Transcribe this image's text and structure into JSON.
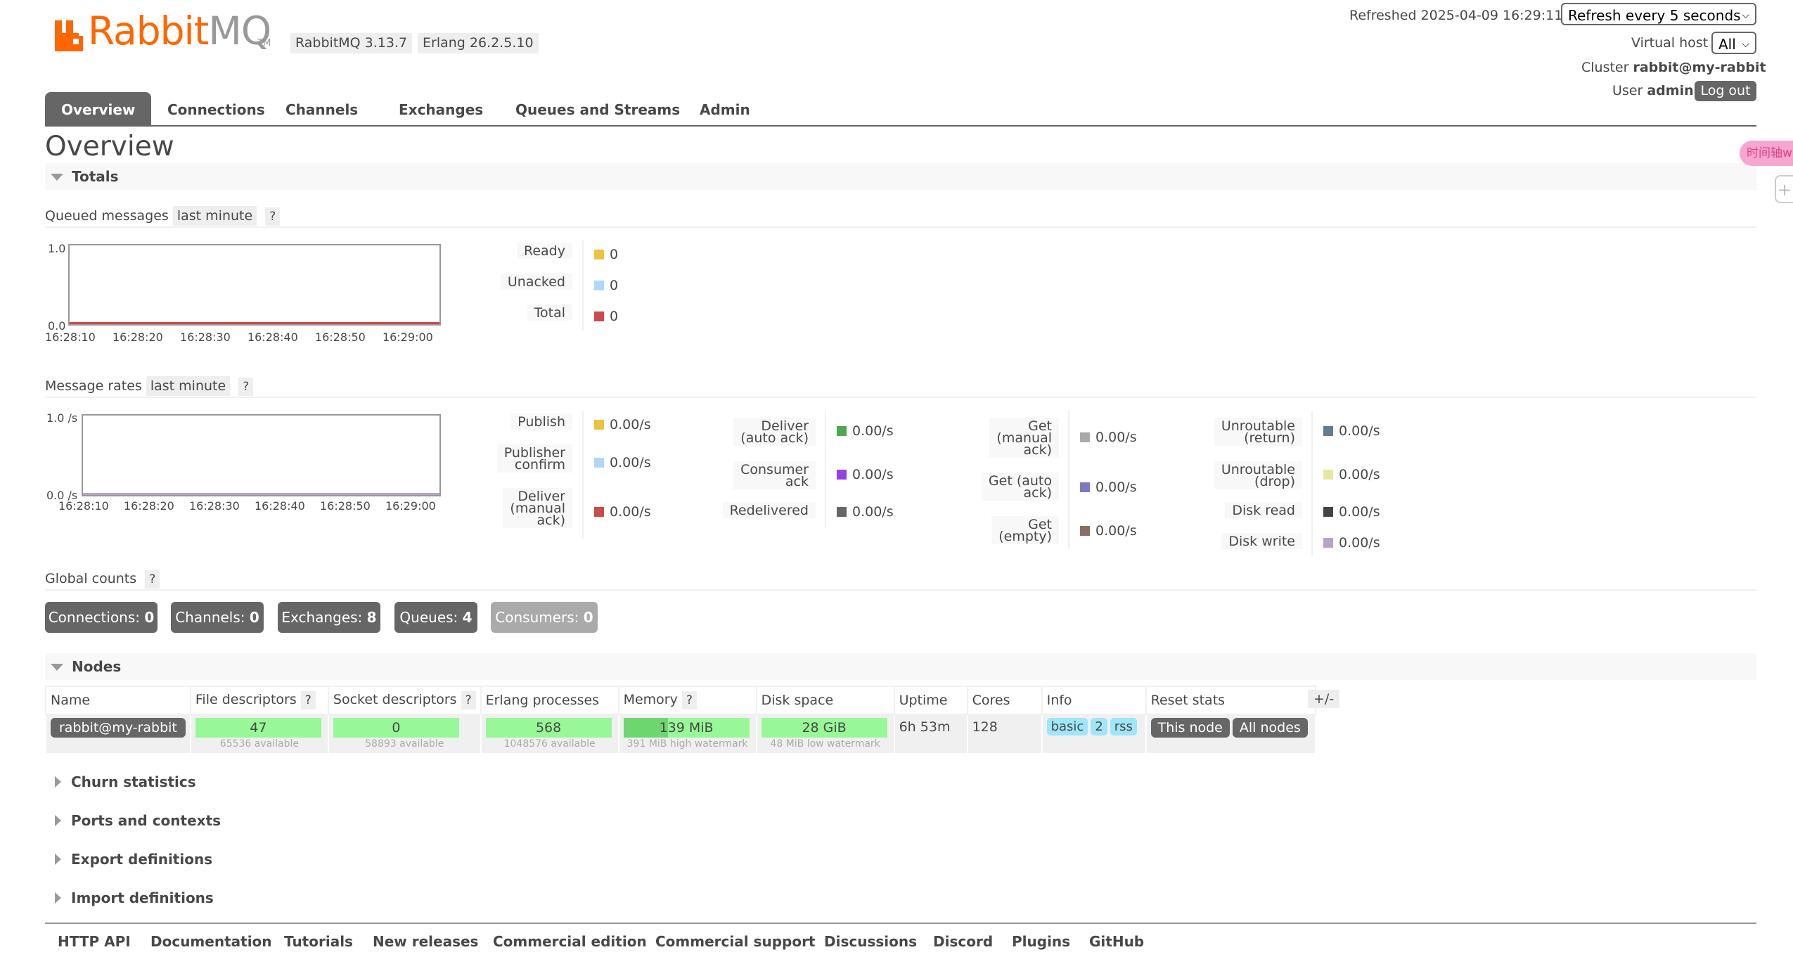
{
  "header": {
    "logo": {
      "rabbit": "Rabbit",
      "mq": "MQ",
      "tm": "TM"
    },
    "rabbitmq_version": "RabbitMQ 3.13.7",
    "erlang_version": "Erlang 26.2.5.10",
    "refreshed_label": "Refreshed 2025-04-09 16:29:11",
    "refresh_select": "Refresh every 5 seconds",
    "virtual_host_label": "Virtual host",
    "virtual_host_value": "All",
    "cluster_label": "Cluster",
    "cluster_value": "rabbit@my-rabbit",
    "user_label": "User",
    "user_value": "admin",
    "logout": "Log out"
  },
  "tabs": [
    "Overview",
    "Connections",
    "Channels",
    "Exchanges",
    "Queues and Streams",
    "Admin"
  ],
  "active_tab": "Overview",
  "page_title": "Overview",
  "totals": {
    "heading": "Totals",
    "queued": {
      "label": "Queued messages",
      "range": "last minute",
      "help": "?",
      "chart": {
        "ymax_label": "1.0",
        "ymin_label": "0.0",
        "x_ticks": [
          "16:28:10",
          "16:28:20",
          "16:28:30",
          "16:28:40",
          "16:28:50",
          "16:29:00"
        ]
      },
      "legend": [
        {
          "label": "Ready",
          "value": "0",
          "color": "#edc240"
        },
        {
          "label": "Unacked",
          "value": "0",
          "color": "#afd8f8"
        },
        {
          "label": "Total",
          "value": "0",
          "color": "#cb4b4b"
        }
      ]
    },
    "rates": {
      "label": "Message rates",
      "range": "last minute",
      "help": "?",
      "chart": {
        "ymax_label": "1.0 /s",
        "ymin_label": "0.0 /s",
        "x_ticks": [
          "16:28:10",
          "16:28:20",
          "16:28:30",
          "16:28:40",
          "16:28:50",
          "16:29:00"
        ]
      },
      "col1": [
        {
          "l1": "Publish",
          "l2": "",
          "l3": "",
          "value": "0.00/s",
          "color": "#edc240"
        },
        {
          "l1": "Publisher",
          "l2": "confirm",
          "l3": "",
          "value": "0.00/s",
          "color": "#afd8f8"
        },
        {
          "l1": "Deliver",
          "l2": "(manual",
          "l3": "ack)",
          "value": "0.00/s",
          "color": "#cb4b4b"
        }
      ],
      "col2": [
        {
          "l1": "Deliver",
          "l2": "(auto ack)",
          "l3": "",
          "value": "0.00/s",
          "color": "#4da74d"
        },
        {
          "l1": "Consumer",
          "l2": "ack",
          "l3": "",
          "value": "0.00/s",
          "color": "#9440ed"
        },
        {
          "l1": "Redelivered",
          "l2": "",
          "l3": "",
          "value": "0.00/s",
          "color": "#666666"
        }
      ],
      "col3": [
        {
          "l1": "Get",
          "l2": "(manual",
          "l3": "ack)",
          "value": "0.00/s",
          "color": "#aaaaaa"
        },
        {
          "l1": "Get (auto",
          "l2": "ack)",
          "l3": "",
          "value": "0.00/s",
          "color": "#7c79c3"
        },
        {
          "l1": "Get",
          "l2": "(empty)",
          "l3": "",
          "value": "0.00/s",
          "color": "#8d6c61"
        }
      ],
      "col4": [
        {
          "l1": "Unroutable",
          "l2": "(return)",
          "l3": "",
          "value": "0.00/s",
          "color": "#637c8f"
        },
        {
          "l1": "Unroutable",
          "l2": "(drop)",
          "l3": "",
          "value": "0.00/s",
          "color": "#e6e8a2"
        },
        {
          "l1": "Disk read",
          "l2": "",
          "l3": "",
          "value": "0.00/s",
          "color": "#444444"
        },
        {
          "l1": "Disk write",
          "l2": "",
          "l3": "",
          "value": "0.00/s",
          "color": "#bba2c7"
        }
      ]
    },
    "global_counts": {
      "label": "Global counts",
      "help": "?",
      "buttons": [
        {
          "label": "Connections:",
          "value": "0"
        },
        {
          "label": "Channels:",
          "value": "0"
        },
        {
          "label": "Exchanges:",
          "value": "8"
        },
        {
          "label": "Queues:",
          "value": "4"
        },
        {
          "label": "Consumers:",
          "value": "0"
        }
      ]
    }
  },
  "nodes": {
    "heading": "Nodes",
    "columns": [
      "Name",
      "File descriptors",
      "Socket descriptors",
      "Erlang processes",
      "Memory",
      "Disk space",
      "Uptime",
      "Cores",
      "Info",
      "Reset stats"
    ],
    "help": "?",
    "plus_minus": "+/-",
    "row": {
      "name": "rabbit@my-rabbit",
      "file_descriptors": "47",
      "file_descriptors_sub": "65536 available",
      "socket_descriptors": "0",
      "socket_descriptors_sub": "58893 available",
      "erlang_processes": "568",
      "erlang_processes_sub": "1048576 available",
      "memory": "139 MiB",
      "memory_sub": "391 MiB high watermark",
      "memory_fraction": 0.356,
      "disk_space": "28 GiB",
      "disk_space_sub": "48 MiB low watermark",
      "uptime": "6h 53m",
      "cores": "128",
      "info": [
        "basic",
        "2",
        "rss"
      ],
      "reset_this": "This node",
      "reset_all": "All nodes"
    }
  },
  "collapsed_sections": [
    "Churn statistics",
    "Ports and contexts",
    "Export definitions",
    "Import definitions"
  ],
  "footer": [
    "HTTP API",
    "Documentation",
    "Tutorials",
    "New releases",
    "Commercial edition",
    "Commercial support",
    "Discussions",
    "Discord",
    "Plugins",
    "GitHub"
  ],
  "overlay": {
    "side_tab": "时间轴w",
    "side_icon": "+"
  }
}
